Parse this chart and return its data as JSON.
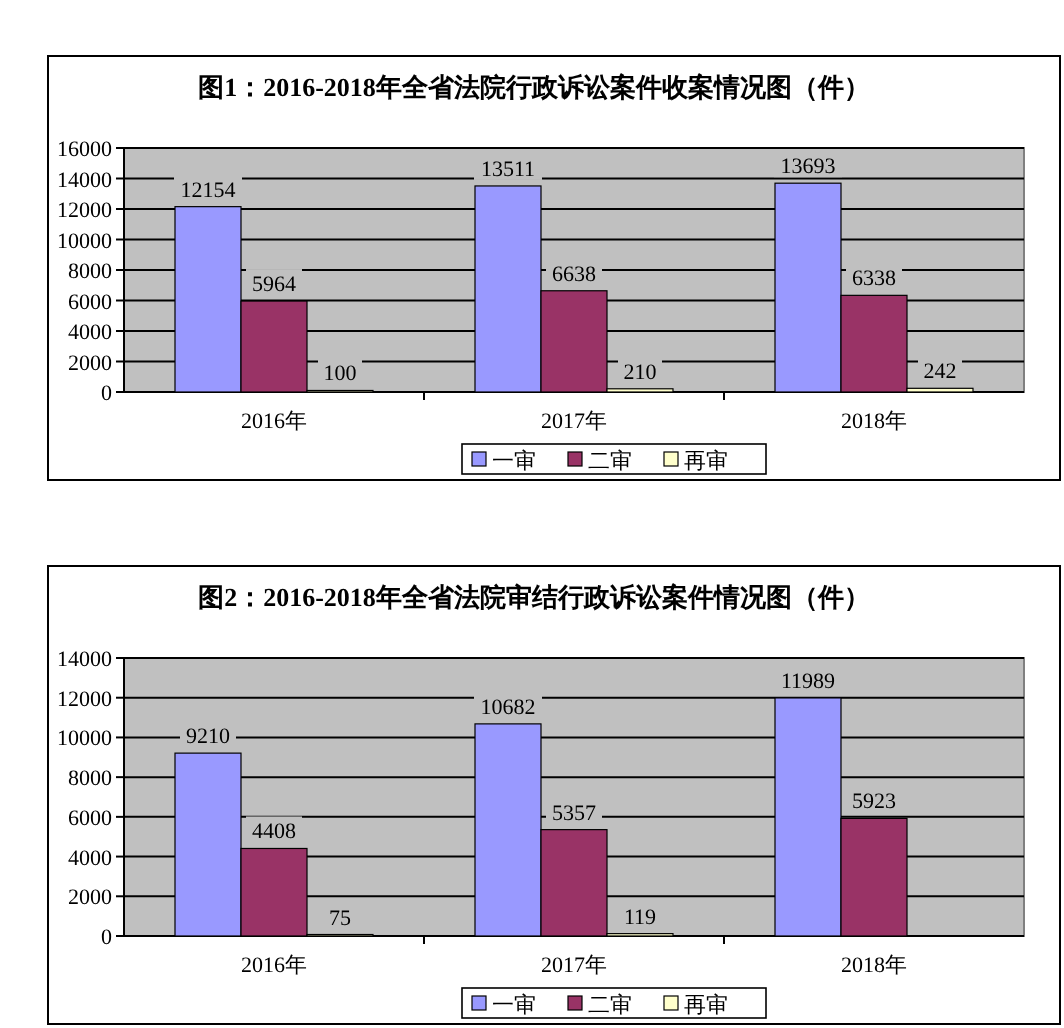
{
  "chart_data": [
    {
      "type": "bar",
      "title": "图1：2016-2018年全省法院行政诉讼案件收案情况图（件）",
      "categories": [
        "2016年",
        "2017年",
        "2018年"
      ],
      "series": [
        {
          "name": "一审",
          "color": "#9999ff",
          "values": [
            12154,
            13511,
            13693
          ]
        },
        {
          "name": "二审",
          "color": "#993366",
          "values": [
            5964,
            6638,
            6338
          ]
        },
        {
          "name": "再审",
          "color": "#ffffcc",
          "values": [
            100,
            210,
            242
          ]
        }
      ],
      "ylim": [
        0,
        16000
      ],
      "yticks": [
        0,
        2000,
        4000,
        6000,
        8000,
        10000,
        12000,
        14000,
        16000
      ],
      "grid": "y",
      "legend": "bottom",
      "data_labels": true
    },
    {
      "type": "bar",
      "title": "图2：2016-2018年全省法院审结行政诉讼案件情况图（件）",
      "categories": [
        "2016年",
        "2017年",
        "2018年"
      ],
      "series": [
        {
          "name": "一审",
          "color": "#9999ff",
          "values": [
            9210,
            10682,
            11989
          ]
        },
        {
          "name": "二审",
          "color": "#993366",
          "values": [
            4408,
            5357,
            5923
          ]
        },
        {
          "name": "再审",
          "color": "#ffffcc",
          "values": [
            75,
            119,
            null
          ]
        }
      ],
      "ylim": [
        0,
        14000
      ],
      "yticks": [
        0,
        2000,
        4000,
        6000,
        8000,
        10000,
        12000,
        14000
      ],
      "grid": "y",
      "legend": "bottom",
      "data_labels": true
    }
  ]
}
